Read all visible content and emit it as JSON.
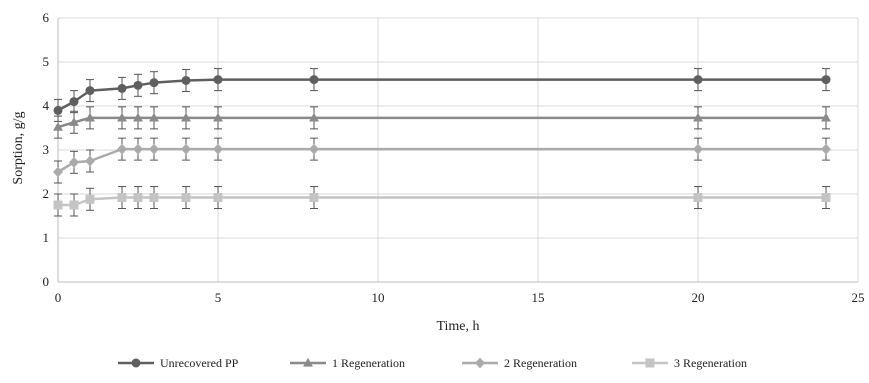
{
  "chart_data": {
    "type": "line",
    "title": "",
    "xlabel": "Time, h",
    "ylabel": "Sorption, g/g",
    "xlim": [
      0,
      25
    ],
    "ylim": [
      0,
      6
    ],
    "x_ticks": [
      "0",
      "5",
      "10",
      "15",
      "20",
      "25"
    ],
    "y_ticks": [
      "0",
      "1",
      "2",
      "3",
      "4",
      "5",
      "6"
    ],
    "grid": true,
    "legend_position": "bottom",
    "error_bars": true,
    "series": [
      {
        "name": "Unrecovered   PP",
        "marker": "circle",
        "color": "#5f5f5f",
        "x": [
          0,
          0.5,
          1,
          2,
          2.5,
          3,
          4,
          5,
          8,
          20,
          24
        ],
        "values": [
          3.9,
          4.1,
          4.35,
          4.4,
          4.47,
          4.53,
          4.58,
          4.6,
          4.6,
          4.6,
          4.6
        ],
        "error": [
          0.25,
          0.25,
          0.25,
          0.25,
          0.25,
          0.25,
          0.25,
          0.25,
          0.25,
          0.25,
          0.25
        ]
      },
      {
        "name": "1 Regeneration",
        "marker": "triangle",
        "color": "#8a8a8a",
        "x": [
          0,
          0.5,
          1,
          2,
          2.5,
          3,
          4,
          5,
          8,
          20,
          24
        ],
        "values": [
          3.52,
          3.63,
          3.73,
          3.73,
          3.73,
          3.73,
          3.73,
          3.73,
          3.73,
          3.73,
          3.73
        ],
        "error": [
          0.25,
          0.25,
          0.25,
          0.25,
          0.25,
          0.25,
          0.25,
          0.25,
          0.25,
          0.25,
          0.25
        ]
      },
      {
        "name": "2 Regeneration",
        "marker": "diamond",
        "color": "#aaaaaa",
        "x": [
          0,
          0.5,
          1,
          2,
          2.5,
          3,
          4,
          5,
          8,
          20,
          24
        ],
        "values": [
          2.5,
          2.72,
          2.75,
          3.02,
          3.02,
          3.02,
          3.02,
          3.02,
          3.02,
          3.02,
          3.02
        ],
        "error": [
          0.25,
          0.25,
          0.25,
          0.25,
          0.25,
          0.25,
          0.25,
          0.25,
          0.25,
          0.25,
          0.25
        ]
      },
      {
        "name": "3 Regeneration",
        "marker": "square",
        "color": "#c4c4c4",
        "x": [
          0,
          0.5,
          1,
          2,
          2.5,
          3,
          4,
          5,
          8,
          20,
          24
        ],
        "values": [
          1.75,
          1.75,
          1.88,
          1.92,
          1.92,
          1.92,
          1.92,
          1.92,
          1.92,
          1.92,
          1.92
        ],
        "error": [
          0.25,
          0.25,
          0.25,
          0.25,
          0.25,
          0.25,
          0.25,
          0.25,
          0.25,
          0.25,
          0.25
        ]
      }
    ]
  }
}
